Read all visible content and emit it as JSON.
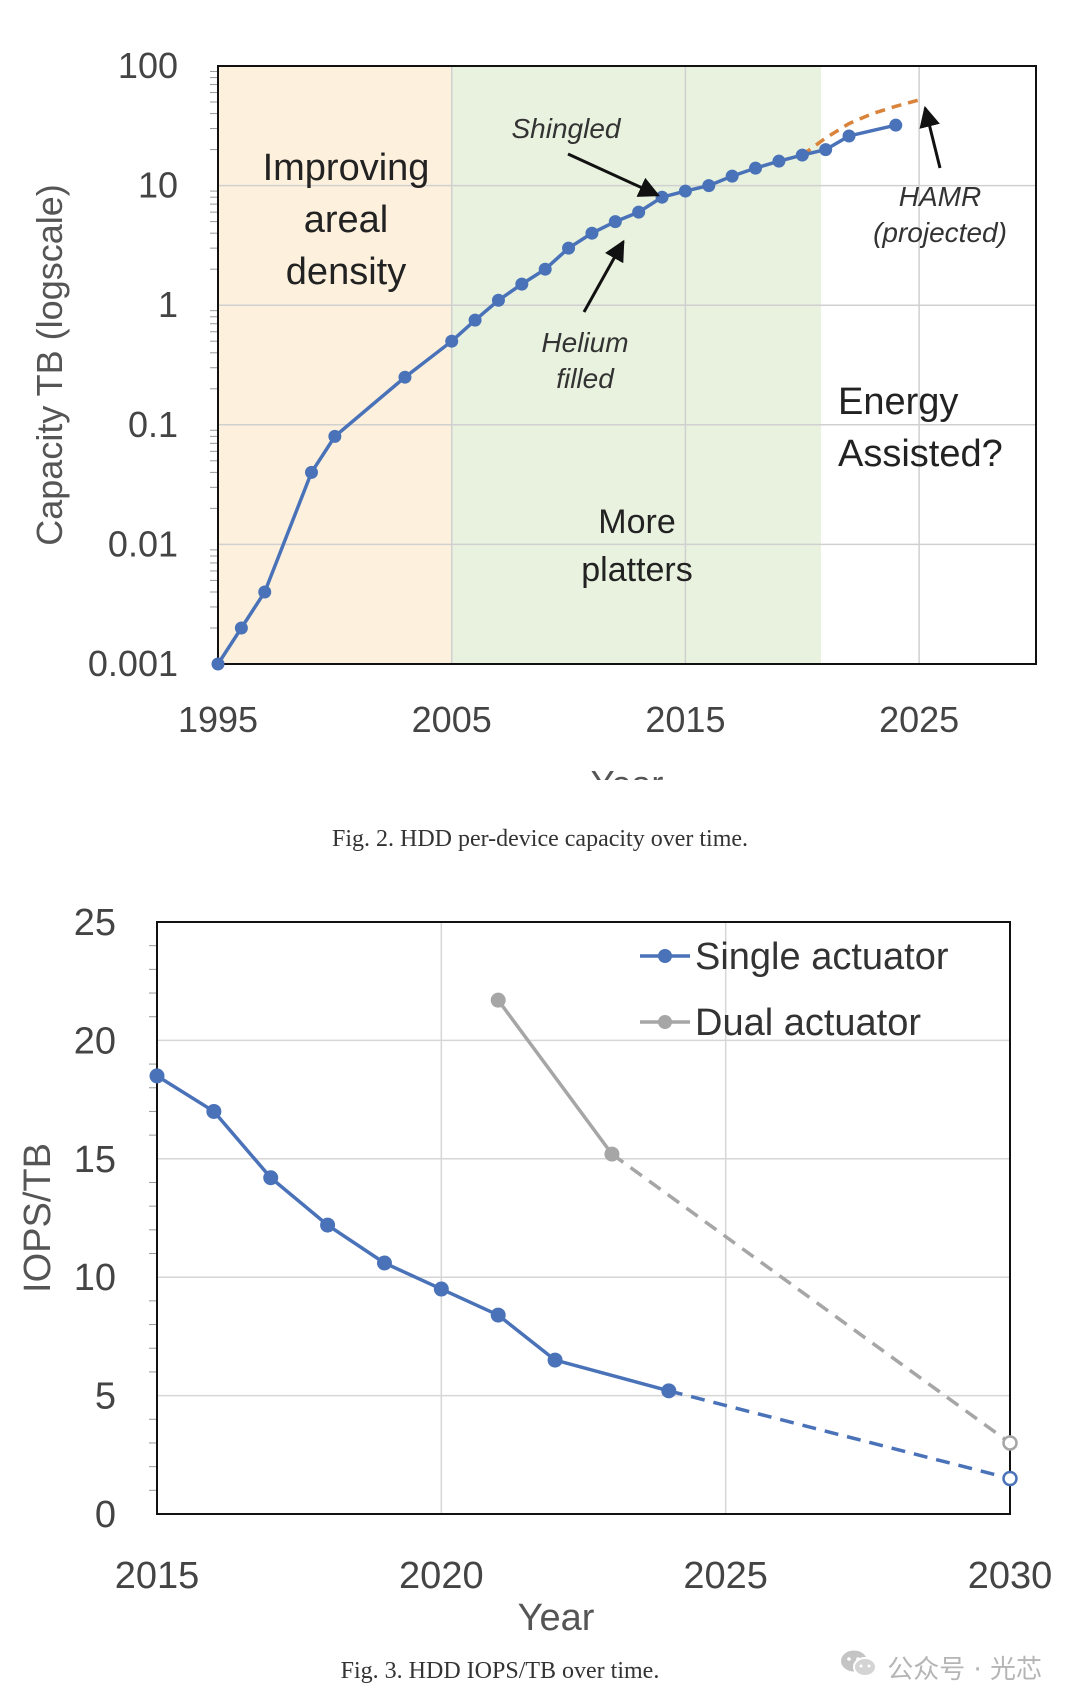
{
  "figure1": {
    "caption": "Fig. 2.  HDD per-device capacity over time.",
    "chart_data": {
      "type": "line",
      "xlabel": "Year",
      "ylabel": "Capacity TB (logscale)",
      "yscale": "log",
      "xlim": [
        1995,
        2030
      ],
      "ylim": [
        0.001,
        100
      ],
      "xticks": [
        "1995",
        "2005",
        "2015",
        "2025"
      ],
      "yticks": [
        "0.001",
        "0.01",
        "0.1",
        "1",
        "10",
        "100"
      ],
      "grid": true,
      "regions": [
        {
          "from": 1995,
          "to": 2005,
          "color": "#fdf1dd",
          "label": [
            "Improving",
            "areal",
            "density"
          ]
        },
        {
          "from": 2005,
          "to": 2020.8,
          "color": "#e8f2de",
          "label": [
            "More",
            "platters"
          ]
        },
        {
          "from": 2020.8,
          "to": 2030,
          "color": "#ffffff",
          "label": [
            "Energy",
            "Assisted?"
          ]
        }
      ],
      "series": [
        {
          "name": "",
          "color": "#4a72b8",
          "x": [
            1995,
            1996,
            1997,
            1999,
            2000,
            2003,
            2005,
            2006,
            2007,
            2008,
            2009,
            2010,
            2011,
            2012,
            2013,
            2014,
            2015,
            2016,
            2017,
            2018,
            2019,
            2020,
            2021,
            2022,
            2024
          ],
          "y": [
            0.001,
            0.002,
            0.004,
            0.04,
            0.08,
            0.25,
            0.5,
            0.75,
            1.1,
            1.5,
            2,
            3,
            4,
            5,
            6,
            8,
            9,
            10,
            12,
            14,
            16,
            18,
            20,
            26,
            32
          ]
        },
        {
          "name": "",
          "color": "#d9833b",
          "style": "dashed",
          "x": [
            2020,
            2021,
            2022,
            2023,
            2024,
            2025
          ],
          "y": [
            18,
            25,
            33,
            40,
            46,
            52
          ]
        }
      ],
      "annotations": [
        {
          "text": "Shingled",
          "points_to": [
            2014,
            8
          ]
        },
        {
          "text": [
            "Helium",
            "filled"
          ],
          "points_to": [
            2012,
            5
          ]
        },
        {
          "text": [
            "HAMR",
            "(projected)"
          ],
          "points_to": [
            2025,
            52
          ]
        }
      ]
    }
  },
  "figure2": {
    "caption": "Fig. 3.  HDD IOPS/TB over time.",
    "chart_data": {
      "type": "line",
      "xlabel": "Year",
      "ylabel": "IOPS/TB",
      "xlim": [
        2015,
        2030
      ],
      "ylim": [
        0,
        25
      ],
      "xticks": [
        "2015",
        "2020",
        "2025",
        "2030"
      ],
      "yticks": [
        "0",
        "5",
        "10",
        "15",
        "20",
        "25"
      ],
      "grid": true,
      "legend": "top-right",
      "series": [
        {
          "name": "Single actuator",
          "color": "#4a72b8",
          "x": [
            2015,
            2016,
            2017,
            2018,
            2019,
            2020,
            2021,
            2022,
            2024
          ],
          "y": [
            18.5,
            17.0,
            14.2,
            12.2,
            10.6,
            9.5,
            8.4,
            6.5,
            5.2
          ],
          "projection": {
            "x": [
              2024,
              2030
            ],
            "y": [
              5.2,
              1.5
            ]
          }
        },
        {
          "name": "Dual actuator",
          "color": "#a6a6a6",
          "x": [
            2021,
            2023
          ],
          "y": [
            21.7,
            15.2
          ],
          "projection": {
            "x": [
              2023,
              2030
            ],
            "y": [
              15.2,
              3.0
            ]
          }
        }
      ]
    }
  },
  "watermark": {
    "text": "公众号 · 光芯",
    "icon": "wechat-icon"
  }
}
